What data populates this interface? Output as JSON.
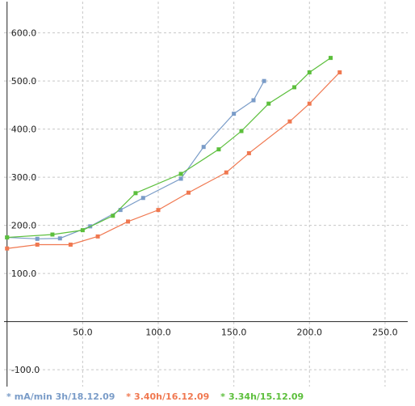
{
  "chart_data": {
    "type": "line",
    "title": "",
    "xlabel": "",
    "ylabel": "",
    "xlim": [
      -2,
      265
    ],
    "ylim": [
      -135,
      665
    ],
    "x_ticks": [
      50,
      100,
      150,
      200,
      250
    ],
    "y_ticks": [
      -100,
      100,
      200,
      300,
      400,
      500,
      600
    ],
    "x_tick_labels": [
      "50.0",
      "100.0",
      "150.0",
      "200.0",
      "250.0"
    ],
    "y_tick_labels": [
      "-100.0",
      "100.0",
      "200.0",
      "300.0",
      "400.0",
      "500.0",
      "600.0"
    ],
    "grid": true,
    "legend_position": "bottom",
    "series": [
      {
        "name": "mA/min 3h/18.12.09",
        "color": "#7a9cc8",
        "x": [
          0,
          20,
          35,
          55,
          75,
          90,
          115,
          130,
          150,
          163,
          170
        ],
        "y": [
          175,
          172,
          173,
          198,
          232,
          257,
          297,
          363,
          432,
          460,
          500
        ]
      },
      {
        "name": "3.40h/16.12.09",
        "color": "#f07850",
        "x": [
          0,
          20,
          42,
          60,
          80,
          100,
          120,
          145,
          160,
          187,
          200,
          220
        ],
        "y": [
          152,
          160,
          160,
          177,
          208,
          232,
          268,
          310,
          350,
          416,
          453,
          518
        ]
      },
      {
        "name": "3.34h/15.12.09",
        "color": "#5cbf3c",
        "x": [
          0,
          30,
          50,
          70,
          85,
          115,
          140,
          155,
          173,
          190,
          200,
          214
        ],
        "y": [
          175,
          181,
          190,
          220,
          267,
          307,
          358,
          396,
          453,
          487,
          518,
          548
        ]
      }
    ]
  }
}
